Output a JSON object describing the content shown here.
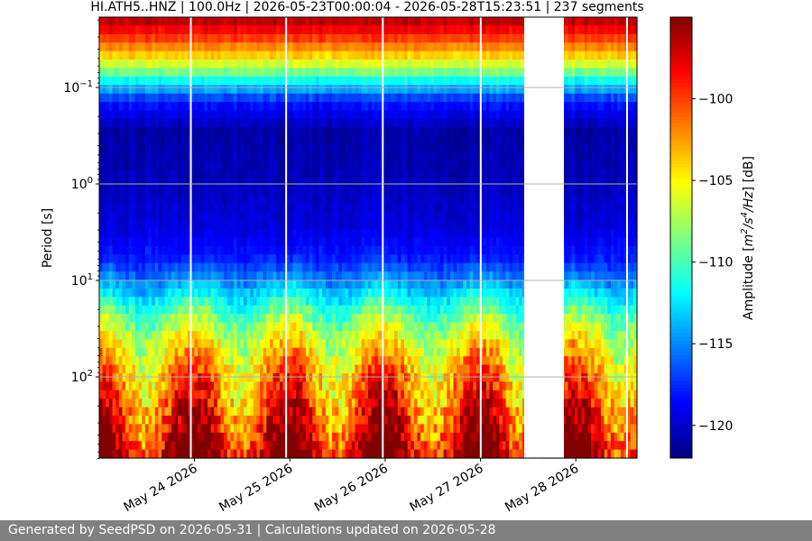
{
  "chart_data": {
    "type": "heatmap",
    "title": "HI.ATH5..HNZ | 100.0Hz | 2026-05-23T00:00:04 - 2026-05-28T15:23:51 | 237 segments",
    "xlabel": "",
    "ylabel": "Period [s]",
    "y_scale": "log",
    "y_inverted": true,
    "ylim": [
      0.02,
      700
    ],
    "y_ticks": [
      {
        "value": 0.1,
        "base": "10",
        "exp": "−1"
      },
      {
        "value": 1,
        "base": "10",
        "exp": "0"
      },
      {
        "value": 10,
        "base": "10",
        "exp": "1"
      },
      {
        "value": 100,
        "base": "10",
        "exp": "2"
      }
    ],
    "xlim": [
      "2026-05-23T00:00:04",
      "2026-05-28T15:23:51"
    ],
    "x_ticks": [
      {
        "date": "2026-05-24",
        "label": "May 24 2026"
      },
      {
        "date": "2026-05-25",
        "label": "May 25 2026"
      },
      {
        "date": "2026-05-26",
        "label": "May 26 2026"
      },
      {
        "date": "2026-05-27",
        "label": "May 27 2026"
      },
      {
        "date": "2026-05-28",
        "label": "May 28 2026"
      }
    ],
    "grid": true,
    "colormap": "jet",
    "colorbar": {
      "label_parts": [
        "Amplitude [",
        "m",
        "2",
        "/s",
        "4",
        "/Hz",
        "] [dB]"
      ],
      "range": [
        -122,
        -95
      ],
      "ticks": [
        -100,
        -105,
        -110,
        -115,
        -120
      ],
      "tick_labels": [
        "−100",
        "−105",
        "−110",
        "−115",
        "−120"
      ]
    },
    "data_gaps": [
      [
        "2026-05-23T22:50:00",
        "2026-05-23T23:00:00"
      ],
      [
        "2026-05-24T22:50:00",
        "2026-05-24T23:00:00"
      ],
      [
        "2026-05-25T23:10:00",
        "2026-05-25T23:20:00"
      ],
      [
        "2026-05-26T23:50:00",
        "2026-05-27T00:00:00"
      ],
      [
        "2026-05-27T11:00:00",
        "2026-05-27T21:00:00"
      ],
      [
        "2026-05-28T12:40:00",
        "2026-05-28T13:00:00"
      ]
    ],
    "data_end": "2026-05-28T15:23:51",
    "spectrum_profile": [
      {
        "period": 0.02,
        "db": -96
      },
      {
        "period": 0.03,
        "db": -99
      },
      {
        "period": 0.05,
        "db": -104
      },
      {
        "period": 0.07,
        "db": -108
      },
      {
        "period": 0.1,
        "db": -113
      },
      {
        "period": 0.15,
        "db": -118
      },
      {
        "period": 0.3,
        "db": -121
      },
      {
        "period": 1,
        "db": -120.5
      },
      {
        "period": 3,
        "db": -119.5
      },
      {
        "period": 6,
        "db": -118
      },
      {
        "period": 10,
        "db": -115
      },
      {
        "period": 20,
        "db": -110
      },
      {
        "period": 40,
        "db": -106
      },
      {
        "period": 80,
        "db": -103
      },
      {
        "period": 150,
        "db": -101
      },
      {
        "period": 300,
        "db": -99
      },
      {
        "period": 700,
        "db": -96
      }
    ]
  },
  "footer": {
    "text": "Generated by SeedPSD on 2026-05-31 | Calculations updated on 2026-05-28"
  }
}
